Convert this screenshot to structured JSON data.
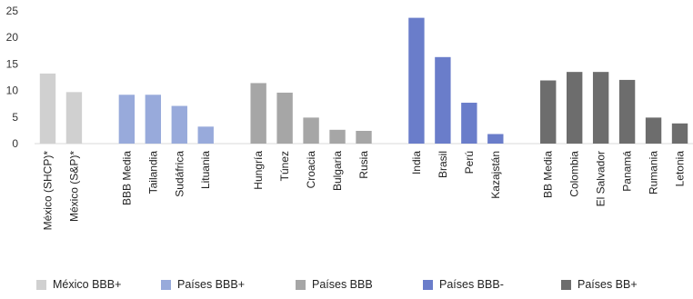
{
  "chart_data": {
    "type": "bar",
    "ylim": [
      0,
      25
    ],
    "yticks": [
      0,
      5,
      10,
      15,
      20,
      25
    ],
    "grid": false,
    "legend_position": "bottom",
    "groups": [
      {
        "name": "México BBB+",
        "color": "#d0d0d0",
        "categories": [
          "México (SHCP)*",
          "México (S&P)*"
        ],
        "values": [
          13.2,
          9.7
        ]
      },
      {
        "name": "Países BBB+",
        "color": "#98aadb",
        "categories": [
          "BBB Media",
          "Tailandia",
          "Sudáfrica",
          "Lituania"
        ],
        "values": [
          9.2,
          9.2,
          7.1,
          3.2
        ]
      },
      {
        "name": "Países BBB",
        "color": "#a6a6a6",
        "categories": [
          "Hungría",
          "Túnez",
          "Croacia",
          "Bulgaria",
          "Rusia"
        ],
        "values": [
          11.4,
          9.6,
          4.9,
          2.6,
          2.4
        ]
      },
      {
        "name": "Países BBB-",
        "color": "#6a7dca",
        "categories": [
          "India",
          "Brasil",
          "Perú",
          "Kazajstán"
        ],
        "values": [
          23.7,
          16.3,
          7.7,
          1.8
        ]
      },
      {
        "name": "Países BB+",
        "color": "#6d6d6d",
        "categories": [
          "BB Media",
          "Colombia",
          "El Salvador",
          "Panamá",
          "Rumania",
          "Letonia"
        ],
        "values": [
          11.9,
          13.5,
          13.5,
          12.0,
          4.9,
          3.8
        ]
      }
    ]
  }
}
